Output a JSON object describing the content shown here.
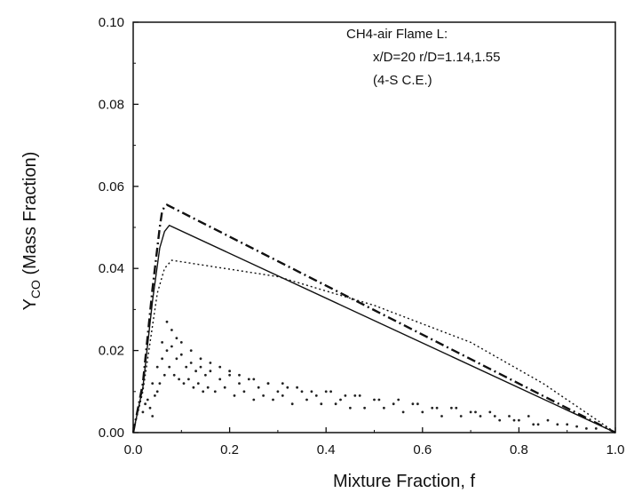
{
  "chart_data": {
    "type": "scatter",
    "xlabel": "Mixture Fraction, f",
    "ylabel_main": "Y",
    "ylabel_sub": "CO",
    "ylabel_rest": " (Mass Fraction)",
    "xlim": [
      0.0,
      1.0
    ],
    "ylim": [
      0.0,
      0.1
    ],
    "x_ticks": [
      "0.0",
      "0.2",
      "0.4",
      "0.6",
      "0.8",
      "1.0"
    ],
    "y_ticks": [
      "0.00",
      "0.02",
      "0.04",
      "0.06",
      "0.08",
      "0.10"
    ],
    "grid": false,
    "annotation": [
      "CH4-air Flame L:",
      "x/D=20  r/D=1.14,1.55",
      "(4-S C.E.)"
    ],
    "series": [
      {
        "style": "dash-dot",
        "x": [
          0.0,
          0.02,
          0.04,
          0.055,
          0.06,
          0.065,
          0.07,
          1.0
        ],
        "y": [
          0.0,
          0.012,
          0.035,
          0.05,
          0.054,
          0.055,
          0.0555,
          0.0
        ]
      },
      {
        "style": "solid",
        "x": [
          0.0,
          0.02,
          0.04,
          0.055,
          0.065,
          0.075,
          1.0
        ],
        "y": [
          0.0,
          0.011,
          0.032,
          0.045,
          0.049,
          0.0505,
          0.0
        ]
      },
      {
        "style": "dotted",
        "x": [
          0.0,
          0.02,
          0.035,
          0.05,
          0.065,
          0.08,
          0.3,
          0.5,
          0.7,
          0.85,
          0.95,
          1.0
        ],
        "y": [
          0.0,
          0.01,
          0.022,
          0.034,
          0.04,
          0.042,
          0.038,
          0.031,
          0.022,
          0.012,
          0.004,
          0.0
        ]
      }
    ],
    "scatter_points": {
      "x": [
        0.02,
        0.03,
        0.04,
        0.05,
        0.06,
        0.07,
        0.08,
        0.09,
        0.1,
        0.11,
        0.12,
        0.13,
        0.14,
        0.15,
        0.16,
        0.18,
        0.2,
        0.22,
        0.24,
        0.26,
        0.28,
        0.3,
        0.32,
        0.35,
        0.38,
        0.4,
        0.43,
        0.46,
        0.5,
        0.54,
        0.58,
        0.62,
        0.66,
        0.7,
        0.74,
        0.78,
        0.82,
        0.86,
        0.9,
        0.94,
        0.025,
        0.035,
        0.045,
        0.055,
        0.065,
        0.075,
        0.085,
        0.095,
        0.105,
        0.115,
        0.125,
        0.135,
        0.145,
        0.155,
        0.17,
        0.19,
        0.21,
        0.23,
        0.25,
        0.27,
        0.29,
        0.31,
        0.33,
        0.36,
        0.39,
        0.42,
        0.45,
        0.48,
        0.52,
        0.56,
        0.6,
        0.64,
        0.68,
        0.72,
        0.76,
        0.8,
        0.84,
        0.88,
        0.92,
        0.96,
        0.04,
        0.05,
        0.06,
        0.07,
        0.08,
        0.09,
        0.1,
        0.12,
        0.14,
        0.16,
        0.18,
        0.2,
        0.22,
        0.25,
        0.28,
        0.31,
        0.34,
        0.37,
        0.41,
        0.44,
        0.47,
        0.51,
        0.55,
        0.59,
        0.63,
        0.67,
        0.71,
        0.75,
        0.79,
        0.83
      ],
      "y": [
        0.005,
        0.008,
        0.012,
        0.016,
        0.018,
        0.02,
        0.021,
        0.018,
        0.019,
        0.016,
        0.017,
        0.015,
        0.016,
        0.014,
        0.015,
        0.013,
        0.014,
        0.012,
        0.013,
        0.011,
        0.012,
        0.01,
        0.011,
        0.01,
        0.009,
        0.01,
        0.008,
        0.009,
        0.008,
        0.007,
        0.007,
        0.006,
        0.006,
        0.005,
        0.005,
        0.004,
        0.004,
        0.003,
        0.002,
        0.001,
        0.007,
        0.006,
        0.009,
        0.012,
        0.014,
        0.016,
        0.014,
        0.013,
        0.012,
        0.013,
        0.011,
        0.012,
        0.01,
        0.011,
        0.01,
        0.011,
        0.009,
        0.01,
        0.008,
        0.009,
        0.008,
        0.009,
        0.007,
        0.008,
        0.007,
        0.007,
        0.006,
        0.006,
        0.006,
        0.005,
        0.005,
        0.004,
        0.004,
        0.004,
        0.003,
        0.003,
        0.002,
        0.002,
        0.0015,
        0.001,
        0.004,
        0.01,
        0.022,
        0.027,
        0.025,
        0.023,
        0.022,
        0.02,
        0.018,
        0.017,
        0.016,
        0.015,
        0.014,
        0.013,
        0.012,
        0.012,
        0.011,
        0.01,
        0.01,
        0.009,
        0.009,
        0.008,
        0.008,
        0.007,
        0.006,
        0.006,
        0.005,
        0.004,
        0.003,
        0.002
      ]
    }
  }
}
